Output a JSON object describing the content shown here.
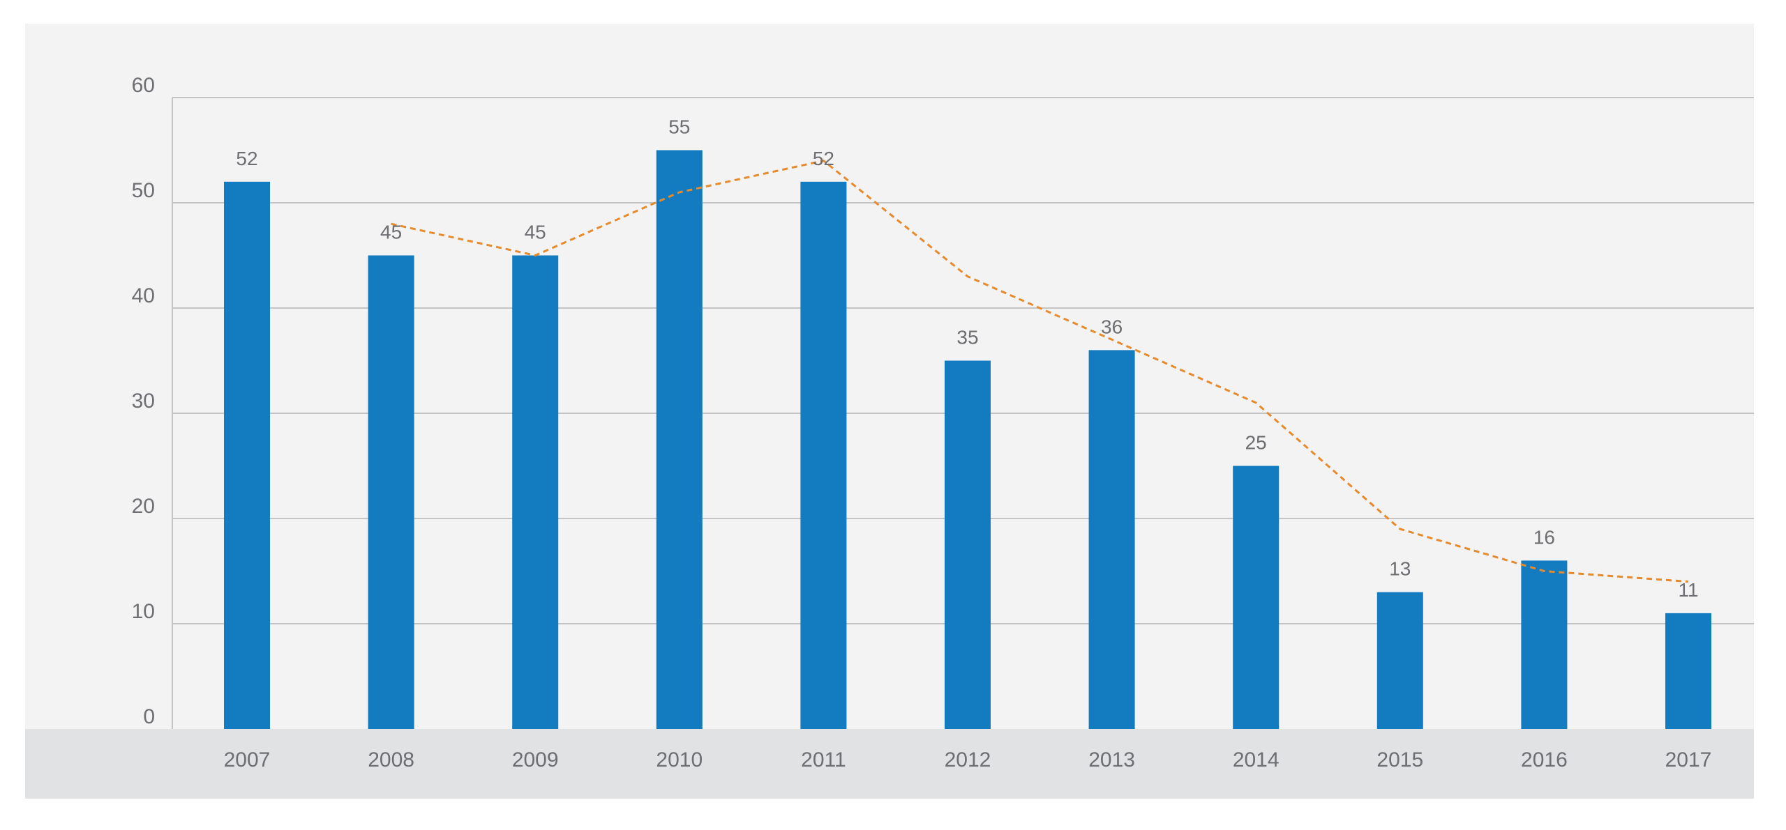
{
  "colors": {
    "plot_background": "#f3f3f3",
    "xaxis_band": "#e1e2e4",
    "gridline": "#c3c4c6",
    "bar": "#137bc0",
    "line": "#e68a2c",
    "text": "#6d6e71"
  },
  "chart_data": {
    "type": "bar",
    "title": "",
    "xlabel": "",
    "ylabel": "",
    "categories": [
      "2007",
      "2008",
      "2009",
      "2010",
      "2011",
      "2012",
      "2013",
      "2014",
      "2015",
      "2016",
      "2017"
    ],
    "ylim": [
      0,
      60
    ],
    "yticks": [
      "0",
      "10",
      "20",
      "30",
      "40",
      "50",
      "60"
    ],
    "grid": true,
    "series": [
      {
        "type": "bar",
        "values": [
          52,
          45,
          45,
          55,
          52,
          35,
          36,
          25,
          13,
          16,
          11
        ],
        "data_labels": [
          "52",
          "45",
          "45",
          "55",
          "52",
          "35",
          "36",
          "25",
          "13",
          "16",
          "11"
        ]
      },
      {
        "type": "line",
        "style": "dashed",
        "values": [
          null,
          48,
          45,
          51,
          54,
          43,
          37,
          31,
          19,
          15,
          14
        ]
      }
    ]
  }
}
